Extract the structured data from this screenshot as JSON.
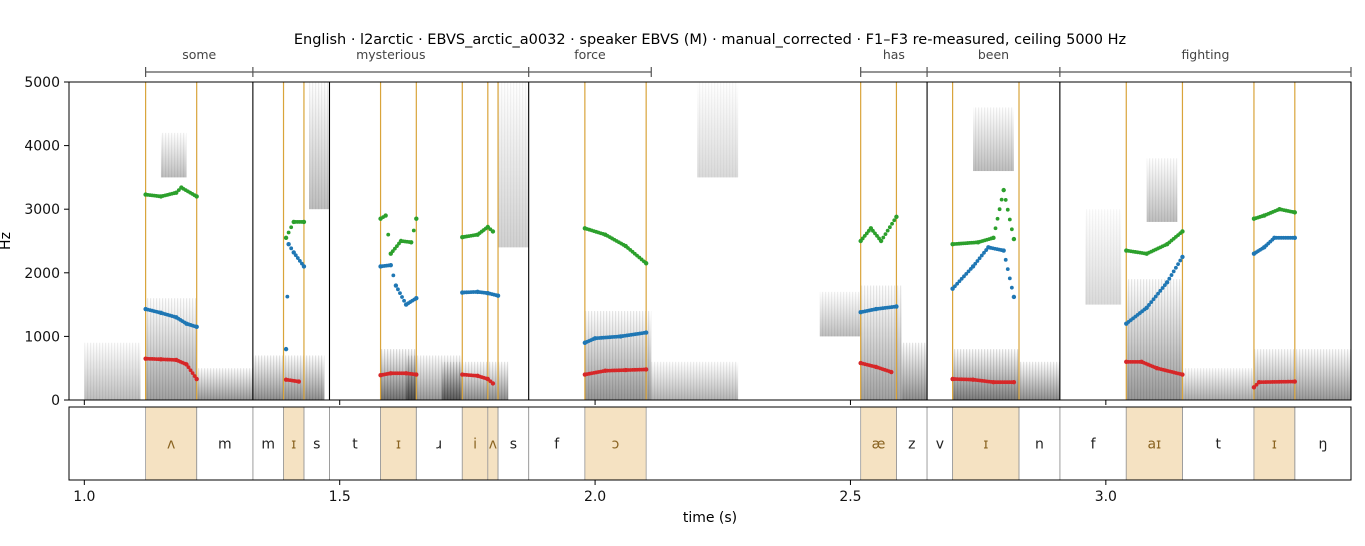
{
  "chart_data": {
    "type": "spectrogram",
    "title": "English · l2arctic · EBVS_arctic_a0032 · speaker EBVS (M) · manual_corrected · F1–F3 re-measured, ceiling 5000 Hz",
    "xlabel": "time (s)",
    "ylabel": "Hz",
    "xlim": [
      0.97,
      3.48
    ],
    "ylim": [
      0,
      5000
    ],
    "x_ticks": [
      "1.0",
      "1.5",
      "2.0",
      "2.5",
      "3.0"
    ],
    "x_tick_values": [
      1.0,
      1.5,
      2.0,
      2.5,
      3.0
    ],
    "y_ticks": [
      "0",
      "1000",
      "2000",
      "3000",
      "4000",
      "5000"
    ],
    "y_tick_values": [
      0,
      1000,
      2000,
      3000,
      4000,
      5000
    ],
    "words": [
      {
        "text": "some",
        "start": 1.12,
        "end": 1.33
      },
      {
        "text": "mysterious",
        "start": 1.33,
        "end": 1.87
      },
      {
        "text": "force",
        "start": 1.87,
        "end": 2.11
      },
      {
        "text": "has",
        "start": 2.52,
        "end": 2.65
      },
      {
        "text": "been",
        "start": 2.65,
        "end": 2.91
      },
      {
        "text": "fighting",
        "start": 2.91,
        "end": 3.48
      }
    ],
    "phones": [
      {
        "label": "ʌ",
        "start": 1.12,
        "end": 1.22,
        "vowel": true
      },
      {
        "label": "m",
        "start": 1.22,
        "end": 1.33,
        "vowel": false
      },
      {
        "label": "m",
        "start": 1.33,
        "end": 1.39,
        "vowel": false
      },
      {
        "label": "ɪ",
        "start": 1.39,
        "end": 1.43,
        "vowel": true
      },
      {
        "label": "s",
        "start": 1.43,
        "end": 1.48,
        "vowel": false
      },
      {
        "label": "t",
        "start": 1.48,
        "end": 1.58,
        "vowel": false
      },
      {
        "label": "ɪ",
        "start": 1.58,
        "end": 1.65,
        "vowel": true
      },
      {
        "label": "ɹ",
        "start": 1.65,
        "end": 1.74,
        "vowel": false
      },
      {
        "label": "i",
        "start": 1.74,
        "end": 1.79,
        "vowel": true
      },
      {
        "label": "ʌ",
        "start": 1.79,
        "end": 1.81,
        "vowel": true
      },
      {
        "label": "s",
        "start": 1.81,
        "end": 1.87,
        "vowel": false
      },
      {
        "label": "f",
        "start": 1.87,
        "end": 1.98,
        "vowel": false
      },
      {
        "label": "ɔ",
        "start": 1.98,
        "end": 2.1,
        "vowel": true
      },
      {
        "label": "æ",
        "start": 2.52,
        "end": 2.59,
        "vowel": true
      },
      {
        "label": "z",
        "start": 2.59,
        "end": 2.65,
        "vowel": false
      },
      {
        "label": "v",
        "start": 2.65,
        "end": 2.7,
        "vowel": false
      },
      {
        "label": "ɪ",
        "start": 2.7,
        "end": 2.83,
        "vowel": true
      },
      {
        "label": "n",
        "start": 2.83,
        "end": 2.91,
        "vowel": false
      },
      {
        "label": "f",
        "start": 2.91,
        "end": 3.04,
        "vowel": false
      },
      {
        "label": "aɪ",
        "start": 3.04,
        "end": 3.15,
        "vowel": true
      },
      {
        "label": "t",
        "start": 3.15,
        "end": 3.29,
        "vowel": false
      },
      {
        "label": "ɪ",
        "start": 3.29,
        "end": 3.37,
        "vowel": true
      },
      {
        "label": "ŋ",
        "start": 3.37,
        "end": 3.48,
        "vowel": false
      }
    ],
    "formant_tracks": [
      {
        "vowel": "ʌ",
        "F1": [
          [
            1.12,
            650
          ],
          [
            1.15,
            640
          ],
          [
            1.18,
            630
          ],
          [
            1.2,
            560
          ],
          [
            1.22,
            330
          ]
        ],
        "F2": [
          [
            1.12,
            1430
          ],
          [
            1.15,
            1370
          ],
          [
            1.18,
            1300
          ],
          [
            1.2,
            1200
          ],
          [
            1.22,
            1150
          ]
        ],
        "F3": [
          [
            1.12,
            3230
          ],
          [
            1.15,
            3200
          ],
          [
            1.18,
            3260
          ],
          [
            1.19,
            3340
          ],
          [
            1.22,
            3200
          ]
        ]
      },
      {
        "vowel": "ɪ",
        "F1": [
          [
            1.395,
            320
          ],
          [
            1.42,
            290
          ]
        ],
        "F2": [
          [
            1.395,
            800
          ],
          [
            1.4,
            2450
          ],
          [
            1.41,
            2320
          ],
          [
            1.43,
            2100
          ]
        ],
        "F3": [
          [
            1.395,
            2550
          ],
          [
            1.41,
            2800
          ],
          [
            1.43,
            2800
          ]
        ]
      },
      {
        "vowel": "ɪ",
        "F1": [
          [
            1.58,
            390
          ],
          [
            1.6,
            420
          ],
          [
            1.63,
            420
          ],
          [
            1.65,
            400
          ]
        ],
        "F2": [
          [
            1.58,
            2100
          ],
          [
            1.6,
            2120
          ],
          [
            1.61,
            1800
          ],
          [
            1.63,
            1500
          ],
          [
            1.65,
            1600
          ]
        ],
        "F3": [
          [
            1.58,
            2850
          ],
          [
            1.59,
            2900
          ],
          [
            1.6,
            2300
          ],
          [
            1.62,
            2500
          ],
          [
            1.64,
            2480
          ],
          [
            1.65,
            2850
          ]
        ]
      },
      {
        "vowel": "i",
        "F1": [
          [
            1.74,
            400
          ],
          [
            1.77,
            380
          ],
          [
            1.79,
            330
          ],
          [
            1.8,
            260
          ]
        ],
        "F2": [
          [
            1.74,
            1690
          ],
          [
            1.77,
            1700
          ],
          [
            1.79,
            1680
          ],
          [
            1.81,
            1640
          ]
        ],
        "F3": [
          [
            1.74,
            2560
          ],
          [
            1.77,
            2600
          ],
          [
            1.79,
            2720
          ],
          [
            1.8,
            2650
          ]
        ]
      },
      {
        "vowel": "ɔ",
        "F1": [
          [
            1.98,
            400
          ],
          [
            2.02,
            460
          ],
          [
            2.06,
            470
          ],
          [
            2.1,
            480
          ]
        ],
        "F2": [
          [
            1.98,
            900
          ],
          [
            2.0,
            970
          ],
          [
            2.05,
            1000
          ],
          [
            2.1,
            1060
          ]
        ],
        "F3": [
          [
            1.98,
            2700
          ],
          [
            2.02,
            2600
          ],
          [
            2.06,
            2420
          ],
          [
            2.1,
            2150
          ]
        ]
      },
      {
        "vowel": "æ",
        "F1": [
          [
            2.52,
            580
          ],
          [
            2.55,
            520
          ],
          [
            2.58,
            440
          ]
        ],
        "F2": [
          [
            2.52,
            1380
          ],
          [
            2.55,
            1430
          ],
          [
            2.59,
            1470
          ]
        ],
        "F3": [
          [
            2.52,
            2500
          ],
          [
            2.54,
            2700
          ],
          [
            2.56,
            2500
          ],
          [
            2.59,
            2880
          ]
        ]
      },
      {
        "vowel": "ɪ",
        "F1": [
          [
            2.7,
            330
          ],
          [
            2.74,
            320
          ],
          [
            2.78,
            280
          ],
          [
            2.82,
            280
          ]
        ],
        "F2": [
          [
            2.7,
            1750
          ],
          [
            2.74,
            2100
          ],
          [
            2.77,
            2400
          ],
          [
            2.8,
            2350
          ],
          [
            2.82,
            1620
          ]
        ],
        "F3": [
          [
            2.7,
            2450
          ],
          [
            2.75,
            2480
          ],
          [
            2.78,
            2550
          ],
          [
            2.8,
            3300
          ],
          [
            2.82,
            2530
          ]
        ]
      },
      {
        "vowel": "aɪ",
        "F1": [
          [
            3.04,
            600
          ],
          [
            3.07,
            600
          ],
          [
            3.1,
            500
          ],
          [
            3.15,
            400
          ]
        ],
        "F2": [
          [
            3.04,
            1200
          ],
          [
            3.08,
            1450
          ],
          [
            3.12,
            1850
          ],
          [
            3.15,
            2250
          ]
        ],
        "F3": [
          [
            3.04,
            2350
          ],
          [
            3.08,
            2300
          ],
          [
            3.12,
            2450
          ],
          [
            3.15,
            2650
          ]
        ]
      },
      {
        "vowel": "ɪ",
        "F1": [
          [
            3.29,
            200
          ],
          [
            3.3,
            280
          ],
          [
            3.37,
            290
          ]
        ],
        "F2": [
          [
            3.29,
            2300
          ],
          [
            3.31,
            2400
          ],
          [
            3.33,
            2550
          ],
          [
            3.37,
            2550
          ]
        ],
        "F3": [
          [
            3.29,
            2850
          ],
          [
            3.31,
            2900
          ],
          [
            3.34,
            3000
          ],
          [
            3.37,
            2950
          ]
        ]
      }
    ],
    "formant_colors": {
      "F1": "#d62728",
      "F2": "#1f77b4",
      "F3": "#2ca02c"
    },
    "colors": {
      "vowel_fill": "#f5e2c2",
      "vowel_line": "#d9a43a",
      "boundary": "#000000",
      "vowel_text": "#8a6422"
    }
  }
}
